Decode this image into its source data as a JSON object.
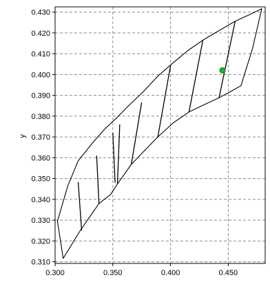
{
  "chart_data": {
    "type": "line",
    "ylabel": "y",
    "xlim": [
      0.3,
      0.482
    ],
    "ylim": [
      0.3092,
      0.4325
    ],
    "x_ticks": [
      "0.300",
      "0.350",
      "0.400",
      "0.450"
    ],
    "x_tick_values": [
      0.3,
      0.35,
      0.4,
      0.45
    ],
    "y_ticks": [
      "0.310",
      "0.320",
      "0.330",
      "0.340",
      "0.350",
      "0.360",
      "0.370",
      "0.380",
      "0.390",
      "0.400",
      "0.410",
      "0.420",
      "0.430"
    ],
    "y_tick_values": [
      0.31,
      0.32,
      0.33,
      0.34,
      0.35,
      0.36,
      0.37,
      0.38,
      0.39,
      0.4,
      0.41,
      0.42,
      0.43
    ],
    "grid": true,
    "outline": [
      [
        0.302,
        0.3295
      ],
      [
        0.311,
        0.3465
      ],
      [
        0.32,
        0.3585
      ],
      [
        0.333,
        0.3675
      ],
      [
        0.343,
        0.3738
      ],
      [
        0.354,
        0.3795
      ],
      [
        0.364,
        0.3852
      ],
      [
        0.376,
        0.3915
      ],
      [
        0.389,
        0.3992
      ],
      [
        0.402,
        0.4055
      ],
      [
        0.415,
        0.4115
      ],
      [
        0.428,
        0.4165
      ],
      [
        0.442,
        0.4211
      ],
      [
        0.456,
        0.4256
      ],
      [
        0.469,
        0.4289
      ],
      [
        0.479,
        0.4316
      ],
      [
        0.471,
        0.4124
      ],
      [
        0.461,
        0.3946
      ],
      [
        0.452,
        0.3918
      ],
      [
        0.442,
        0.3888
      ],
      [
        0.431,
        0.386
      ],
      [
        0.416,
        0.382
      ],
      [
        0.402,
        0.3766
      ],
      [
        0.389,
        0.37
      ],
      [
        0.375,
        0.362
      ],
      [
        0.366,
        0.3568
      ],
      [
        0.354,
        0.3474
      ],
      [
        0.348,
        0.3423
      ],
      [
        0.338,
        0.338
      ],
      [
        0.322,
        0.3252
      ],
      [
        0.307,
        0.3116
      ],
      [
        0.302,
        0.3295
      ]
    ],
    "segments": [
      [
        [
          0.32,
          0.3483
        ],
        [
          0.323,
          0.325
        ]
      ],
      [
        [
          0.336,
          0.361
        ],
        [
          0.338,
          0.338
        ]
      ],
      [
        [
          0.35,
          0.372
        ],
        [
          0.352,
          0.348
        ]
      ],
      [
        [
          0.356,
          0.376
        ],
        [
          0.354,
          0.3474
        ]
      ],
      [
        [
          0.375,
          0.3866
        ],
        [
          0.366,
          0.3568
        ]
      ],
      [
        [
          0.4,
          0.4042
        ],
        [
          0.389,
          0.37
        ]
      ],
      [
        [
          0.428,
          0.4165
        ],
        [
          0.416,
          0.382
        ]
      ],
      [
        [
          0.456,
          0.4256
        ],
        [
          0.442,
          0.3888
        ]
      ]
    ],
    "points": [
      {
        "x": 0.445,
        "y": 0.402,
        "color": "#22b022"
      }
    ],
    "colors": {
      "line": "#000000",
      "grid": "#8a8a8a",
      "point": "#22b022",
      "point_stroke": "#1a7a1a"
    }
  }
}
